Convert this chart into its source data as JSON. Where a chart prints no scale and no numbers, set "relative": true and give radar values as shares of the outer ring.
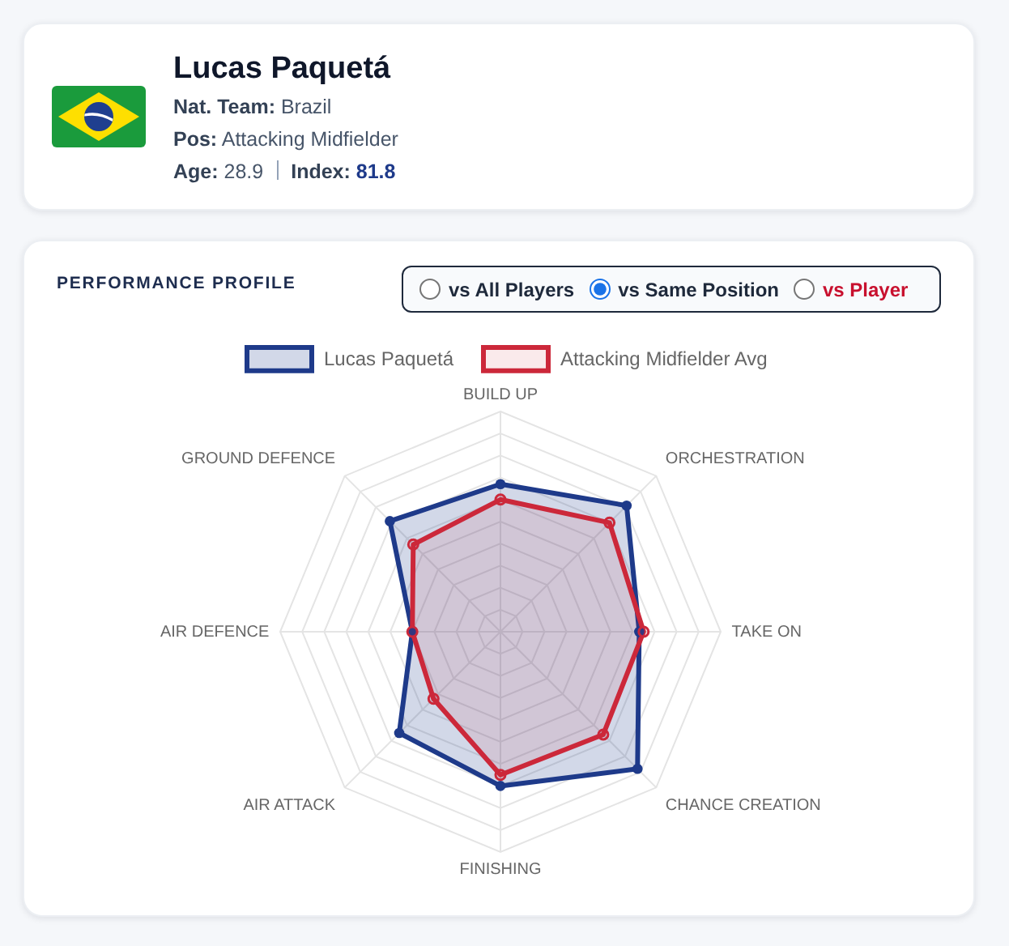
{
  "chart_data": [
    {
      "type": "other",
      "title": "Lucas Paquetá",
      "annotations": [
        "Nat. Team: Brazil",
        "Pos: Attacking Midfielder",
        "Age: 28.9",
        "Index: 81.8"
      ]
    },
    {
      "type": "radar",
      "title": "PERFORMANCE PROFILE",
      "annotations": [
        "vs All Players",
        "vs Same Position",
        "vs Player"
      ],
      "categories": [
        "BUILD UP",
        "ORCHESTRATION",
        "TAKE ON",
        "CHANCE CREATION",
        "FINISHING",
        "AIR ATTACK",
        "AIR DEFENCE",
        "GROUND DEFENCE"
      ],
      "relative": true,
      "series": [
        {
          "name": "Lucas Paquetá",
          "color": "#1e3a8a",
          "values": [
            0.67,
            0.81,
            0.63,
            0.88,
            0.7,
            0.65,
            0.4,
            0.71
          ]
        },
        {
          "name": "Attacking Midfielder Avg",
          "color": "#cc283a",
          "values": [
            0.6,
            0.7,
            0.65,
            0.66,
            0.65,
            0.43,
            0.4,
            0.56
          ]
        }
      ],
      "legend": "top",
      "grid": true,
      "marker": "circle"
    }
  ]
}
